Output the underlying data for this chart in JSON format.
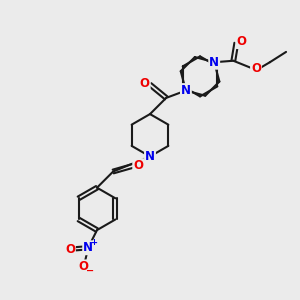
{
  "bg_color": "#ebebeb",
  "bond_color": "#1a1a1a",
  "N_color": "#0000ee",
  "O_color": "#ee0000",
  "bond_width": 1.5,
  "font_size_atom": 8.5,
  "fig_size": [
    3.0,
    3.0
  ],
  "dpi": 100,
  "xlim": [
    0,
    10
  ],
  "ylim": [
    0,
    10
  ]
}
